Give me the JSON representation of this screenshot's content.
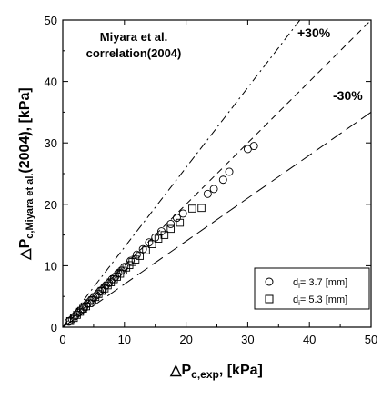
{
  "chart_data": {
    "type": "scatter",
    "title": "",
    "annotation": {
      "line1": "Miyara et al.",
      "line2": "correlation(2004)"
    },
    "xlabel": {
      "prefix": "△P",
      "sub": "c,exp",
      "suffix": ", [kPa]"
    },
    "ylabel": {
      "prefix": "△P",
      "sub": "c,Miyara et al.",
      "suffix": "(2004), [kPa]"
    },
    "xlim": [
      0,
      50
    ],
    "ylim": [
      0,
      50
    ],
    "xticks": [
      0,
      10,
      20,
      30,
      40,
      50
    ],
    "yticks": [
      0,
      10,
      20,
      30,
      40,
      50
    ],
    "grid": false,
    "legend_position": "bottom-right",
    "reference_lines": [
      {
        "label": "",
        "slope": 1.0,
        "style": "dashed"
      },
      {
        "label": "+30%",
        "slope": 1.3,
        "style": "dash-dot"
      },
      {
        "label": "-30%",
        "slope": 0.7,
        "style": "long-dash"
      }
    ],
    "series": [
      {
        "name_prefix": "d",
        "name_sub": "i",
        "name_suffix": "= 3.7 [mm]",
        "marker": "circle",
        "points": [
          [
            1.0,
            0.9
          ],
          [
            1.5,
            1.3
          ],
          [
            2.0,
            1.8
          ],
          [
            2.5,
            2.3
          ],
          [
            3.0,
            2.8
          ],
          [
            3.5,
            3.3
          ],
          [
            4.0,
            3.8
          ],
          [
            4.5,
            4.3
          ],
          [
            5.0,
            4.8
          ],
          [
            5.5,
            5.2
          ],
          [
            6.0,
            5.8
          ],
          [
            6.5,
            6.2
          ],
          [
            7.0,
            6.8
          ],
          [
            7.5,
            7.2
          ],
          [
            8.0,
            7.8
          ],
          [
            8.5,
            8.2
          ],
          [
            9.0,
            8.8
          ],
          [
            9.5,
            9.2
          ],
          [
            10.0,
            9.8
          ],
          [
            11.0,
            10.8
          ],
          [
            12.0,
            11.8
          ],
          [
            13.0,
            12.7
          ],
          [
            14.0,
            13.8
          ],
          [
            15.0,
            14.6
          ],
          [
            16.0,
            15.6
          ],
          [
            17.5,
            16.8
          ],
          [
            18.5,
            17.8
          ],
          [
            19.5,
            18.5
          ],
          [
            23.5,
            21.7
          ],
          [
            24.5,
            22.5
          ],
          [
            26.0,
            24.0
          ],
          [
            27.0,
            25.3
          ],
          [
            30.0,
            29.0
          ],
          [
            31.0,
            29.5
          ]
        ]
      },
      {
        "name_prefix": "d",
        "name_sub": "i",
        "name_suffix": "= 5.3 [mm]",
        "marker": "square",
        "points": [
          [
            1.2,
            1.0
          ],
          [
            1.8,
            1.5
          ],
          [
            2.3,
            2.0
          ],
          [
            2.8,
            2.5
          ],
          [
            3.3,
            3.0
          ],
          [
            3.8,
            3.4
          ],
          [
            4.3,
            3.9
          ],
          [
            4.8,
            4.4
          ],
          [
            5.3,
            4.9
          ],
          [
            5.8,
            5.4
          ],
          [
            6.3,
            5.9
          ],
          [
            6.8,
            6.3
          ],
          [
            7.3,
            6.8
          ],
          [
            7.8,
            7.3
          ],
          [
            8.3,
            7.8
          ],
          [
            8.8,
            8.2
          ],
          [
            9.3,
            8.7
          ],
          [
            9.8,
            9.2
          ],
          [
            10.3,
            9.7
          ],
          [
            10.8,
            10.1
          ],
          [
            11.3,
            10.6
          ],
          [
            11.8,
            11.0
          ],
          [
            12.5,
            11.6
          ],
          [
            13.5,
            12.5
          ],
          [
            14.5,
            13.5
          ],
          [
            15.5,
            14.4
          ],
          [
            16.5,
            15.0
          ],
          [
            17.5,
            16.0
          ],
          [
            19.0,
            17.0
          ],
          [
            21.0,
            19.3
          ],
          [
            22.5,
            19.4
          ]
        ]
      }
    ]
  }
}
